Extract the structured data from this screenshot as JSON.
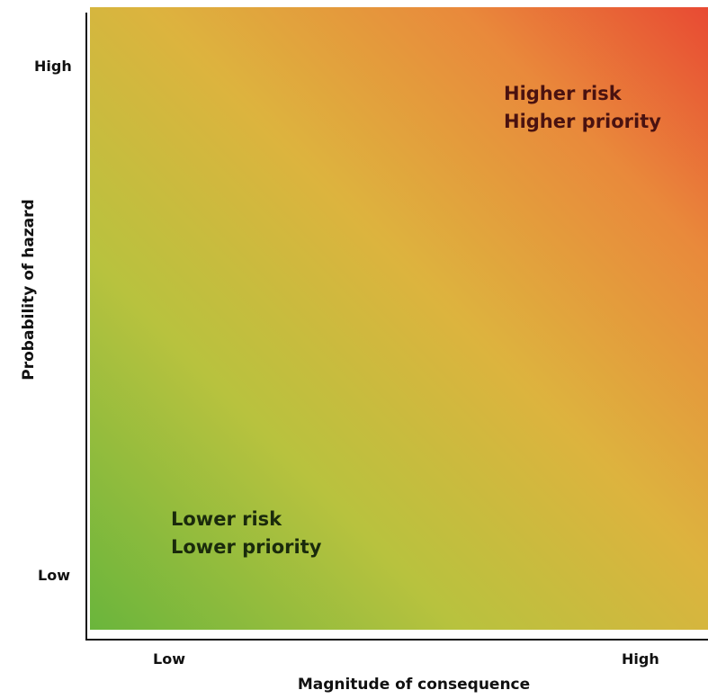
{
  "axes": {
    "y_title": "Probability of hazard",
    "x_title": "Magnitude of consequence",
    "y_ticks": {
      "high": "High",
      "low": "Low"
    },
    "x_ticks": {
      "low": "Low",
      "high": "High"
    }
  },
  "zones": {
    "high": {
      "line1": "Higher risk",
      "line2": "Higher priority"
    },
    "low": {
      "line1": "Lower risk",
      "line2": "Lower priority"
    }
  },
  "colors": {
    "low_corner": "#6ab53c",
    "mid": "#ddb33e",
    "high_corner": "#e84a33",
    "axis": "#111111"
  }
}
